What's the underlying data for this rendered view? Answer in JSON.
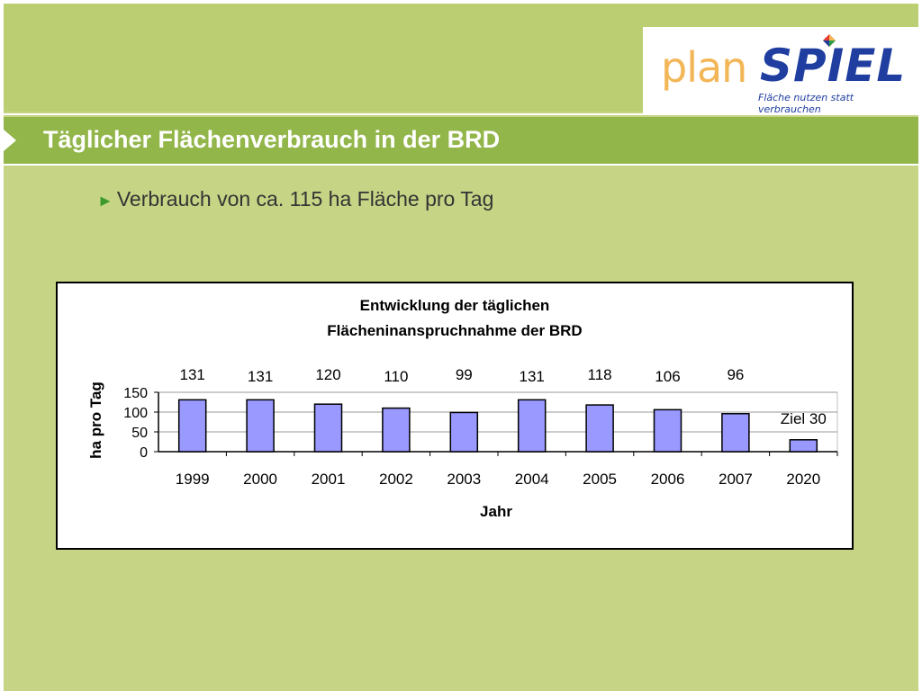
{
  "logo": {
    "plan": "plan",
    "spiel": "SPIEL",
    "tagline": "Fläche nutzen statt verbrauchen"
  },
  "title": "Täglicher Flächenverbrauch in der BRD",
  "bullet": "Verbrauch von ca. 115 ha Fläche pro Tag",
  "colors": {
    "background": "#c6d485",
    "title_bar": "#92b64a",
    "bar_fill": "#9999ff",
    "logo_blue": "#1f3ea0",
    "logo_orange": "#f3b657"
  },
  "chart_data": {
    "type": "bar",
    "title_line1": "Entwicklung der täglichen",
    "title_line2": "Flächeninanspruchnahme der BRD",
    "xlabel": "Jahr",
    "ylabel": "ha pro Tag",
    "categories": [
      "1999",
      "2000",
      "2001",
      "2002",
      "2003",
      "2004",
      "2005",
      "2006",
      "2007",
      "2020"
    ],
    "values": [
      131,
      131,
      120,
      110,
      99,
      131,
      118,
      106,
      96,
      30
    ],
    "data_labels": [
      "131",
      "131",
      "120",
      "110",
      "99",
      "131",
      "118",
      "106",
      "96",
      "Ziel 30"
    ],
    "yticks": [
      "0",
      "50",
      "100",
      "150"
    ],
    "ylim": [
      0,
      150
    ],
    "grid": true,
    "legend": "none"
  }
}
